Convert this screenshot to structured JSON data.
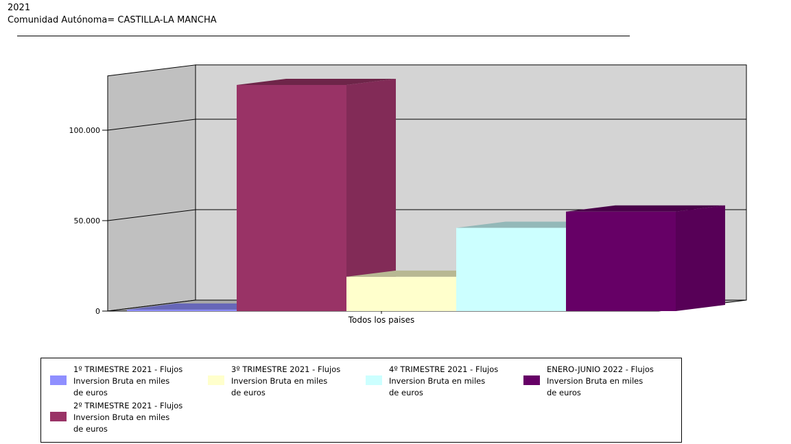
{
  "header": {
    "year": "2021",
    "region": "Comunidad Autónoma= CASTILLA-LA MANCHA"
  },
  "chart_data": {
    "type": "bar",
    "categories": [
      "Todos los paises"
    ],
    "series": [
      {
        "name": "1º TRIMESTRE 2021 - Flujos Inversion Bruta en miles de euros",
        "values": [
          800
        ],
        "color": "#8f8fff"
      },
      {
        "name": "2º TRIMESTRE 2021 - Flujos Inversion Bruta en miles de euros",
        "values": [
          125000
        ],
        "color": "#993366"
      },
      {
        "name": "3º TRIMESTRE 2021 - Flujos Inversion Bruta en miles de euros",
        "values": [
          19000
        ],
        "color": "#ffffcc"
      },
      {
        "name": "4º TRIMESTRE 2021 - Flujos Inversion Bruta en miles de euros",
        "values": [
          46000
        ],
        "color": "#ccffff"
      },
      {
        "name": "ENERO-JUNIO 2022 - Flujos Inversion Bruta en miles de euros",
        "values": [
          55000
        ],
        "color": "#660066"
      }
    ],
    "yticks": [
      "0",
      "50.000",
      "100.000"
    ],
    "ytick_values": [
      0,
      50000,
      100000
    ],
    "ylim": [
      0,
      130000
    ],
    "grid": true,
    "legend_position": "bottom",
    "xlabel": "",
    "ylabel": ""
  },
  "legend": {
    "items": [
      {
        "line1": "1º TRIMESTRE 2021 - Flujos",
        "line2": "Inversion Bruta en miles",
        "line3": "de euros",
        "color": "#8f8fff"
      },
      {
        "line1": "2º TRIMESTRE 2021 - Flujos",
        "line2": "Inversion Bruta en miles",
        "line3": "de euros",
        "color": "#993366"
      },
      {
        "line1": "3º TRIMESTRE 2021 - Flujos",
        "line2": "Inversion Bruta en miles",
        "line3": "de euros",
        "color": "#ffffcc"
      },
      {
        "line1": "4º TRIMESTRE 2021 - Flujos",
        "line2": "Inversion Bruta en miles",
        "line3": "de euros",
        "color": "#ccffff"
      },
      {
        "line1": "ENERO-JUNIO 2022 - Flujos",
        "line2": "Inversion Bruta en miles",
        "line3": "de euros",
        "color": "#660066"
      }
    ]
  }
}
